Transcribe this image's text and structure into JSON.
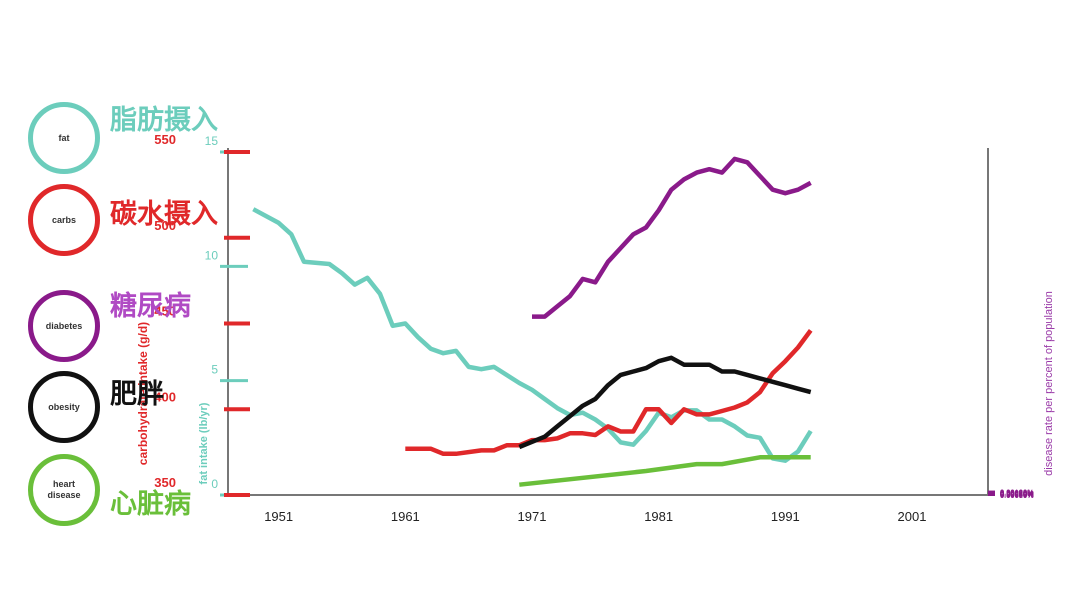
{
  "chart_data": {
    "type": "line",
    "x_ticks": [
      "1951",
      "1961",
      "1971",
      "1981",
      "1991",
      "2001"
    ],
    "xlim": [
      1947,
      2007
    ],
    "axes": {
      "fat": {
        "label": "fat intake (lb/yr)",
        "ticks": [
          "0",
          "5",
          "10",
          "15"
        ],
        "ylim": [
          0,
          15
        ],
        "color": "#6ccdbc"
      },
      "carbs": {
        "label": "carbohydrate intake (g/d)",
        "ticks": [
          "350",
          "400",
          "450",
          "500",
          "550"
        ],
        "ylim": [
          350,
          550
        ],
        "color": "#e0282a"
      },
      "disease": {
        "label": "disease rate per percent of population",
        "ticks": [
          "0.00000%",
          "0.00010%",
          "0.00020%",
          "0.00030%",
          "0.00040%",
          "0.00050%",
          "0.00060%",
          "0.00070%",
          "0.00080%",
          "0.00090%",
          "0.00100%"
        ],
        "ylim": [
          0,
          0.001
        ],
        "color": "#8a1a8a"
      }
    },
    "series": [
      {
        "name": "fat",
        "axis": "fat",
        "color": "#6ccdbc",
        "x": [
          1949,
          1951,
          1952,
          1953,
          1955,
          1956,
          1957,
          1958,
          1959,
          1960,
          1961,
          1962,
          1963,
          1964,
          1965,
          1966,
          1967,
          1968,
          1970,
          1971,
          1972,
          1973,
          1974,
          1975,
          1976,
          1977,
          1978,
          1979,
          1980,
          1981,
          1982,
          1983,
          1984,
          1985,
          1986,
          1987,
          1988,
          1989,
          1990,
          1991,
          1992,
          1993
        ],
        "y": [
          12.5,
          11.9,
          11.4,
          10.2,
          10.1,
          9.7,
          9.2,
          9.5,
          8.8,
          7.4,
          7.5,
          6.9,
          6.4,
          6.2,
          6.3,
          5.6,
          5.5,
          5.6,
          4.9,
          4.6,
          4.2,
          3.8,
          3.5,
          3.6,
          3.3,
          2.9,
          2.3,
          2.2,
          2.8,
          3.6,
          3.4,
          3.7,
          3.7,
          3.3,
          3.3,
          3.0,
          2.6,
          2.5,
          1.6,
          1.5,
          1.9,
          2.8
        ]
      },
      {
        "name": "carbs",
        "axis": "carbs",
        "color": "#e0282a",
        "x": [
          1961,
          1963,
          1964,
          1965,
          1967,
          1968,
          1969,
          1970,
          1971,
          1972,
          1973,
          1974,
          1975,
          1976,
          1977,
          1978,
          1979,
          1980,
          1981,
          1982,
          1983,
          1984,
          1985,
          1986,
          1987,
          1988,
          1989,
          1990,
          1991,
          1992,
          1993
        ],
        "y": [
          377,
          377,
          374,
          374,
          376,
          376,
          379,
          379,
          382,
          382,
          383,
          386,
          386,
          385,
          390,
          387,
          387,
          400,
          400,
          392,
          400,
          397,
          397,
          399,
          401,
          404,
          410,
          421,
          428,
          436,
          446
        ]
      },
      {
        "name": "diabetes",
        "axis": "disease",
        "color": "#8a1a8a",
        "x": [
          1971,
          1972,
          1973,
          1974,
          1975,
          1976,
          1977,
          1978,
          1979,
          1980,
          1981,
          1982,
          1983,
          1984,
          1985,
          1986,
          1987,
          1988,
          1989,
          1990,
          1991,
          1992,
          1993
        ],
        "y": [
          0.00052,
          0.00052,
          0.00055,
          0.00058,
          0.00063,
          0.00062,
          0.00068,
          0.00072,
          0.00076,
          0.00078,
          0.00083,
          0.00089,
          0.00092,
          0.00094,
          0.00095,
          0.00094,
          0.00098,
          0.00097,
          0.00093,
          0.00089,
          0.00088,
          0.00089,
          0.00091
        ]
      },
      {
        "name": "obesity",
        "axis": "disease",
        "color": "#111111",
        "x": [
          1970,
          1972,
          1973,
          1974,
          1975,
          1976,
          1977,
          1978,
          1979,
          1980,
          1981,
          1982,
          1983,
          1984,
          1985,
          1986,
          1987,
          1988,
          1989,
          1990,
          1991,
          1992,
          1993
        ],
        "y": [
          0.00014,
          0.00017,
          0.0002,
          0.00023,
          0.00026,
          0.00028,
          0.00032,
          0.00035,
          0.00036,
          0.00037,
          0.00039,
          0.0004,
          0.00038,
          0.00038,
          0.00038,
          0.00036,
          0.00036,
          0.00035,
          0.00034,
          0.00033,
          0.00032,
          0.00031,
          0.0003
        ]
      },
      {
        "name": "heart disease",
        "axis": "disease",
        "color": "#6abf3a",
        "x": [
          1970,
          1980,
          1984,
          1986,
          1989,
          1993
        ],
        "y": [
          3e-05,
          7e-05,
          9e-05,
          9e-05,
          0.00011,
          0.00011
        ]
      }
    ]
  },
  "legend": [
    {
      "label": "fat",
      "caption": "脂肪摄入",
      "color": "#6ccdbc",
      "caption_color": "#6ccdbc"
    },
    {
      "label": "carbs",
      "caption": "碳水摄入",
      "color": "#e0282a",
      "caption_color": "#e0282a"
    },
    {
      "label": "diabetes",
      "caption": "糖尿病",
      "color": "#8a1a8a",
      "caption_color": "#b04ac4"
    },
    {
      "label": "obesity",
      "caption": "肥胖",
      "color": "#111111",
      "caption_color": "#111111"
    },
    {
      "label": "heart disease",
      "caption": "心脏病",
      "color": "#6abf3a",
      "caption_color": "#6abf3a"
    }
  ]
}
